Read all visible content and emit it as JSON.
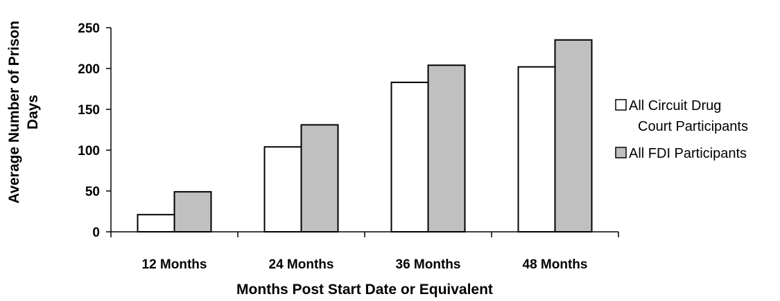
{
  "chart_data": {
    "type": "bar",
    "title": "",
    "categories": [
      "12 Months",
      "24 Months",
      "36 Months",
      "48 Months"
    ],
    "series": [
      {
        "name": "All Circuit Drug Court Participants",
        "values": [
          21,
          104,
          183,
          202
        ],
        "color": "#ffffff"
      },
      {
        "name": "All FDI Participants",
        "values": [
          49,
          131,
          204,
          235
        ],
        "color": "#c0c0c0"
      }
    ],
    "xlabel": "Months Post Start Date or Equivalent",
    "ylabel": "Average Number of Prison Days",
    "ylim": [
      0,
      250
    ],
    "yticks": [
      0,
      50,
      100,
      150,
      200,
      250
    ],
    "grid": false,
    "legend_position": "right"
  }
}
